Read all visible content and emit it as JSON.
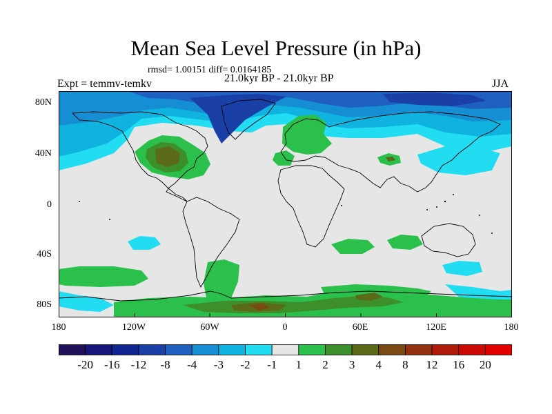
{
  "title": "Mean Sea Level Pressure (in hPa)",
  "stats": "rmsd= 1.00151 diff= 0.0164185",
  "period": "21.0kyr BP - 21.0kyr BP",
  "experiment": "Expt = temmv-temkv",
  "season": "JJA",
  "lat_labels": [
    "80N",
    "40N",
    "0",
    "40S",
    "80S"
  ],
  "lon_labels": [
    "180",
    "120W",
    "60W",
    "0",
    "60E",
    "120E",
    "180"
  ],
  "colorbar": {
    "labels": [
      "-20",
      "-16",
      "-12",
      "-8",
      "-4",
      "-3",
      "-2",
      "-1",
      "1",
      "2",
      "3",
      "4",
      "8",
      "12",
      "16",
      "20"
    ],
    "colors": [
      "#20105a",
      "#15157a",
      "#102592",
      "#1a40a8",
      "#1f5fc0",
      "#168ed4",
      "#10b2e0",
      "#22dcf2",
      "#e6e6e6",
      "#2bbf4b",
      "#3c8f2a",
      "#5a6a18",
      "#7a4a14",
      "#93320f",
      "#b01c0a",
      "#cc0a05",
      "#e30000"
    ]
  }
}
